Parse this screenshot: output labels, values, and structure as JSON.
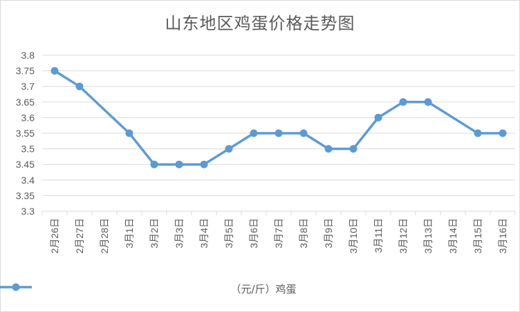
{
  "chart_data": {
    "type": "line",
    "title": "山东地区鸡蛋价格走势图",
    "xlabel": "",
    "ylabel": "",
    "categories": [
      "2月26日",
      "2月27日",
      "2月28日",
      "3月1日",
      "3月2日",
      "3月3日",
      "3月4日",
      "3月5日",
      "3月6日",
      "3月7日",
      "3月8日",
      "3月9日",
      "3月10日",
      "3月11日",
      "3月12日",
      "3月13日",
      "3月14日",
      "3月15日",
      "3月16日"
    ],
    "series": [
      {
        "name": "（元/斤）鸡蛋",
        "values": [
          3.75,
          3.7,
          null,
          3.55,
          3.45,
          3.45,
          3.45,
          3.5,
          3.55,
          3.55,
          3.55,
          3.5,
          3.5,
          3.6,
          3.65,
          3.65,
          null,
          3.55,
          3.55
        ],
        "color": "#5b9bd5"
      }
    ],
    "ylim": [
      3.3,
      3.8
    ],
    "yticks": [
      "3.3",
      "3.35",
      "3.4",
      "3.45",
      "3.5",
      "3.55",
      "3.6",
      "3.65",
      "3.7",
      "3.75",
      "3.8"
    ],
    "grid": true,
    "legend_position": "bottom"
  }
}
